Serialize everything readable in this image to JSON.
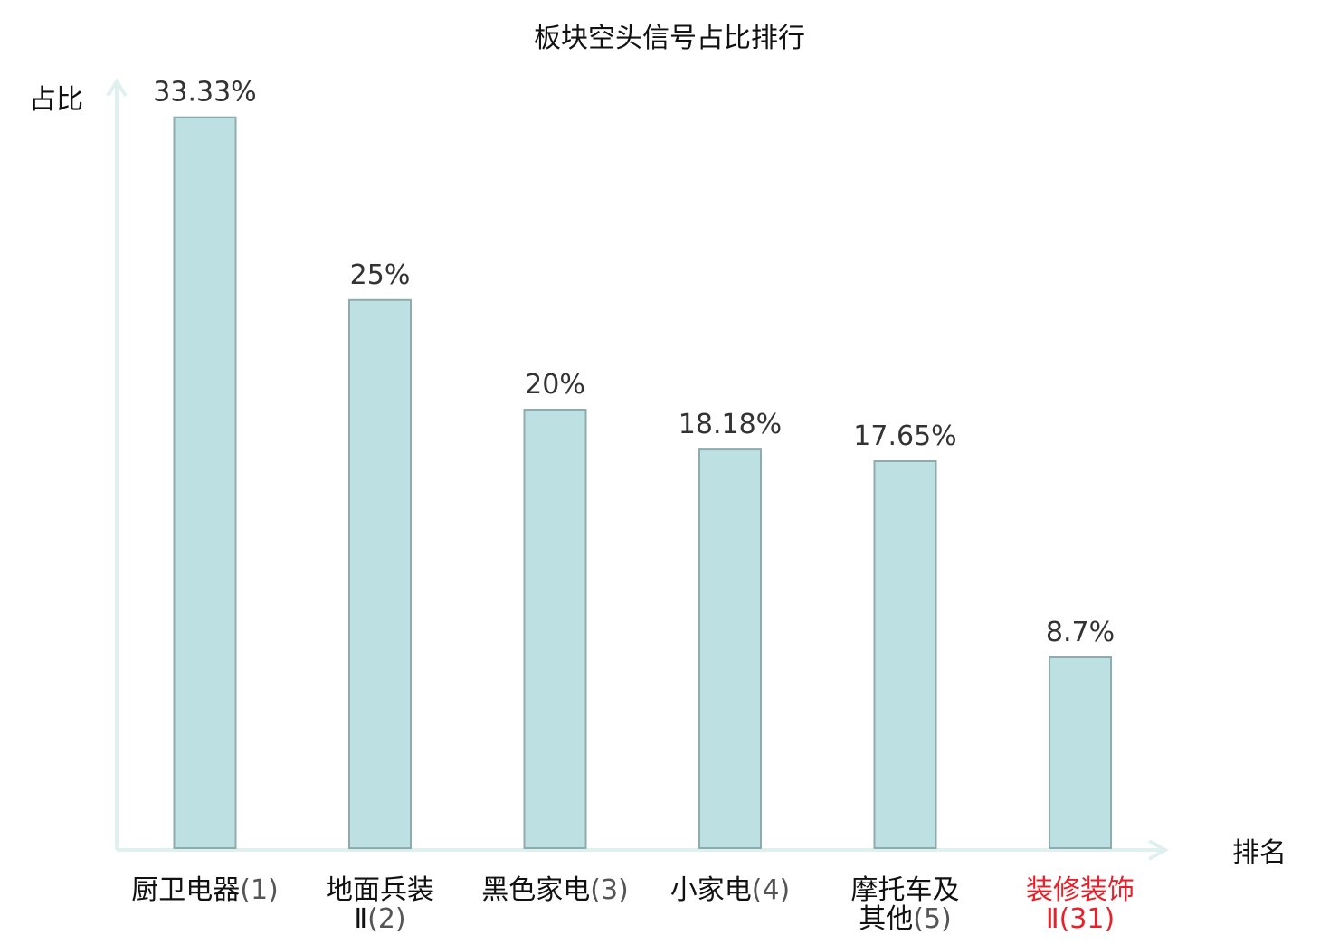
{
  "chart_data": {
    "type": "bar",
    "title": "板块空头信号占比排行",
    "ylabel": "占比",
    "xlabel": "排名",
    "ylim": [
      0,
      35
    ],
    "grid": false,
    "legend": "none",
    "categories": [
      {
        "name_lines": [
          "厨卫电器"
        ],
        "rank": "(1)",
        "highlight": false
      },
      {
        "name_lines": [
          "地面兵装",
          "Ⅱ"
        ],
        "rank": "(2)",
        "highlight": false
      },
      {
        "name_lines": [
          "黑色家电"
        ],
        "rank": "(3)",
        "highlight": false
      },
      {
        "name_lines": [
          "小家电"
        ],
        "rank": "(4)",
        "highlight": false
      },
      {
        "name_lines": [
          "摩托车及",
          "其他"
        ],
        "rank": "(5)",
        "highlight": false
      },
      {
        "name_lines": [
          "装修装饰",
          "Ⅱ"
        ],
        "rank": "(31)",
        "highlight": true
      }
    ],
    "values": [
      33.33,
      25,
      20,
      18.18,
      17.65,
      8.7
    ],
    "value_labels": [
      "33.33%",
      "25%",
      "20%",
      "18.18%",
      "17.65%",
      "8.7%"
    ]
  },
  "colors": {
    "bar_fill": "#bde0e2",
    "bar_stroke": "#8eabad",
    "axis": "#dff0ee",
    "text": "#111111",
    "value_text": "#333333",
    "rank_text": "#555555",
    "highlight": "#e8202a"
  }
}
